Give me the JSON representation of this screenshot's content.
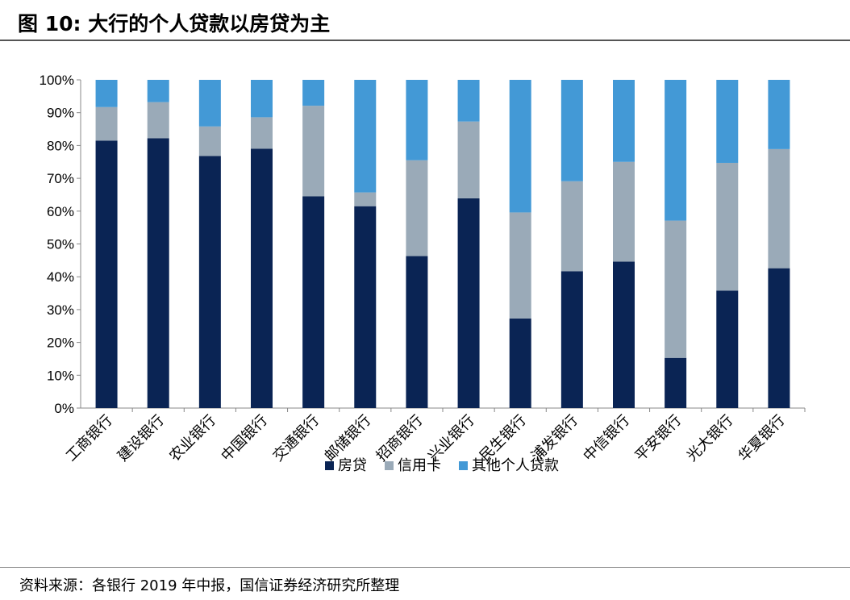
{
  "header": {
    "title": "图 10:  大行的个人贷款以房贷为主"
  },
  "footer": {
    "source": "资料来源：各银行 2019 年中报，国信证券经济研究所整理"
  },
  "colors": {
    "series": [
      "#0a2454",
      "#9aaab8",
      "#4399d6"
    ]
  },
  "chart_data": {
    "type": "bar",
    "stacked": true,
    "categories": [
      "工商银行",
      "建设银行",
      "农业银行",
      "中国银行",
      "交通银行",
      "邮储银行",
      "招商银行",
      "兴业银行",
      "民生银行",
      "浦发银行",
      "中信银行",
      "平安银行",
      "光大银行",
      "华夏银行"
    ],
    "series": [
      {
        "name": "房贷",
        "values": [
          81.5,
          82.2,
          76.8,
          79.0,
          64.5,
          61.5,
          46.3,
          63.9,
          27.3,
          41.7,
          44.6,
          15.3,
          35.8,
          42.6
        ]
      },
      {
        "name": "信用卡",
        "values": [
          10.2,
          11.0,
          9.0,
          9.6,
          27.6,
          4.2,
          29.2,
          23.4,
          32.3,
          27.4,
          30.4,
          41.8,
          38.9,
          36.3
        ]
      },
      {
        "name": "其他个人贷款",
        "values": [
          8.3,
          6.8,
          14.2,
          11.4,
          7.9,
          34.3,
          24.5,
          12.7,
          40.4,
          30.9,
          25.0,
          42.9,
          25.3,
          21.1
        ]
      }
    ],
    "yticks": [
      "0%",
      "10%",
      "20%",
      "30%",
      "40%",
      "50%",
      "60%",
      "70%",
      "80%",
      "90%",
      "100%"
    ],
    "ylim": [
      0,
      100
    ],
    "legend_position": "bottom-center",
    "grid": false
  }
}
